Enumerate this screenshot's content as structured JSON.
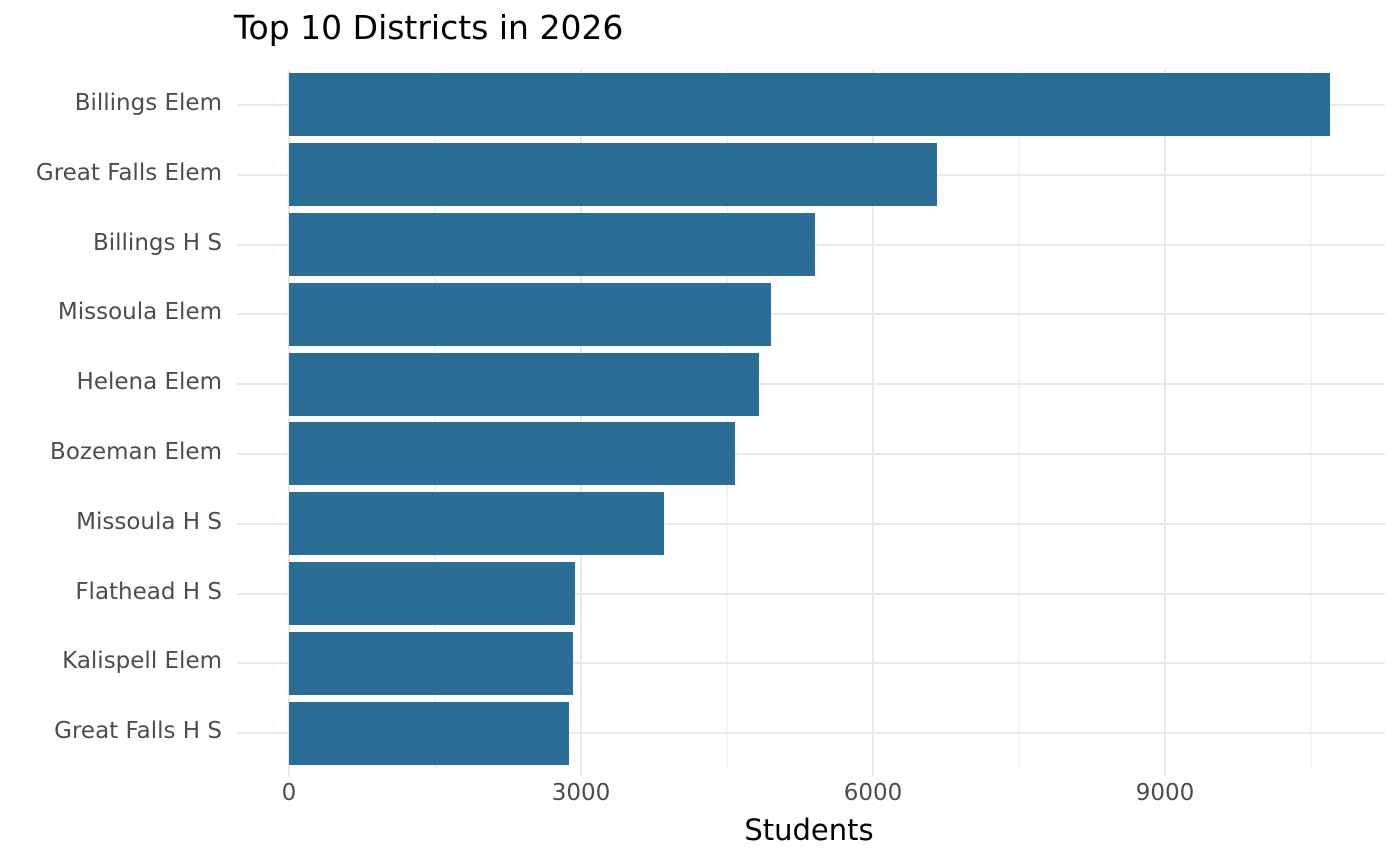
{
  "title": "Top 10 Districts in 2026",
  "colors": {
    "bar": "#2b6e95",
    "grid_major": "#e8e8e8",
    "grid_minor": "#f2f2f2",
    "tick_label": "#4d4d4d",
    "title_text": "#000000",
    "background": "#ffffff"
  },
  "chart_data": {
    "type": "bar",
    "orientation": "horizontal",
    "title": "Top 10 Districts in 2026",
    "xlabel": "Students",
    "ylabel": "",
    "legend_position": "none",
    "grid": "vertical major + minor, horizontal major per category",
    "categories": [
      "Billings Elem",
      "Great Falls Elem",
      "Billings H S",
      "Missoula Elem",
      "Helena Elem",
      "Bozeman Elem",
      "Missoula H S",
      "Flathead H S",
      "Kalispell Elem",
      "Great Falls H S"
    ],
    "values": [
      10700,
      6660,
      5400,
      4950,
      4830,
      4580,
      3850,
      2940,
      2920,
      2880
    ],
    "xlim": [
      0,
      11260
    ],
    "x_major_ticks": [
      0,
      3000,
      6000,
      9000
    ],
    "x_minor_ticks": [
      1500,
      4500,
      7500,
      10500
    ]
  }
}
